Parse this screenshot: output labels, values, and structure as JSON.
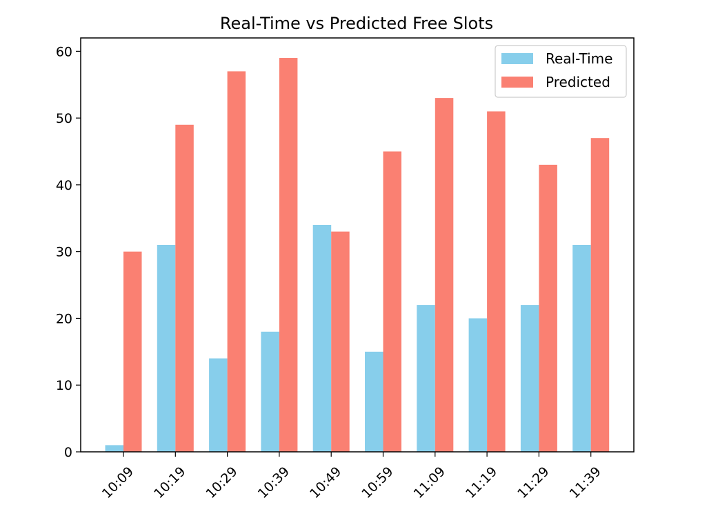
{
  "chart_data": {
    "type": "bar",
    "title": "Real-Time vs Predicted Free Slots",
    "xlabel": "",
    "ylabel": "",
    "categories": [
      "10:09",
      "10:19",
      "10:29",
      "10:39",
      "10:49",
      "10:59",
      "11:09",
      "11:19",
      "11:29",
      "11:39"
    ],
    "series": [
      {
        "name": "Real-Time",
        "color": "#87ceeb",
        "values": [
          1,
          31,
          14,
          18,
          34,
          15,
          22,
          20,
          22,
          31
        ]
      },
      {
        "name": "Predicted",
        "color": "#fa8072",
        "values": [
          30,
          49,
          57,
          59,
          33,
          45,
          53,
          51,
          43,
          47
        ]
      }
    ],
    "ylim": [
      0,
      62
    ],
    "yticks": [
      0,
      10,
      20,
      30,
      40,
      50,
      60
    ],
    "legend_position": "top-right",
    "grid": false,
    "x_tick_rotation": 45
  }
}
